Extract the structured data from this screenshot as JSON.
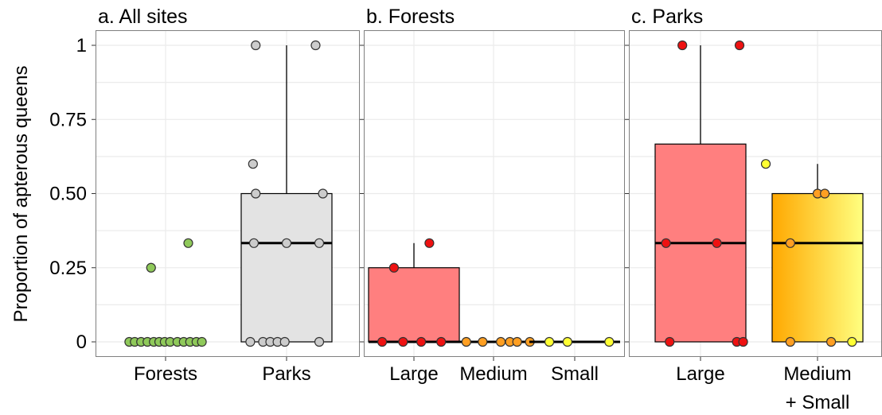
{
  "colors": {
    "forests": "#8fc95a",
    "parks": "#cccccc",
    "parks_box": "#e3e3e3",
    "large": "#ff7f7f",
    "large_point": "#ee1111",
    "medium": "#ff9f22",
    "small": "#ffff33",
    "medium_small_gradient": [
      "#ffa800",
      "#ffff80"
    ]
  },
  "chart_data": [
    {
      "type": "box",
      "title": "a. All sites",
      "ylabel": "Proportion of apterous queens",
      "ylim": [
        0,
        1
      ],
      "yticks": [
        0,
        0.25,
        0.5,
        0.75,
        1
      ],
      "ytick_labels": [
        "0",
        "0.25",
        "0.50",
        "0.75",
        "1"
      ],
      "categories": [
        {
          "label": [
            "Forests"
          ],
          "fill": "#8fc95a",
          "box": null,
          "points": [
            {
              "x": -0.4,
              "y": 0
            },
            {
              "x": -0.34,
              "y": 0
            },
            {
              "x": -0.27,
              "y": 0
            },
            {
              "x": -0.2,
              "y": 0
            },
            {
              "x": -0.13,
              "y": 0
            },
            {
              "x": -0.07,
              "y": 0
            },
            {
              "x": -0.01,
              "y": 0
            },
            {
              "x": 0.05,
              "y": 0
            },
            {
              "x": 0.13,
              "y": 0
            },
            {
              "x": 0.2,
              "y": 0
            },
            {
              "x": 0.27,
              "y": 0
            },
            {
              "x": 0.34,
              "y": 0
            },
            {
              "x": 0.4,
              "y": 0
            },
            {
              "x": -0.16,
              "y": 0.25
            },
            {
              "x": 0.25,
              "y": 0.333
            }
          ]
        },
        {
          "label": [
            "Parks"
          ],
          "fill": "#cccccc",
          "box": {
            "q1": 0,
            "median": 0.333,
            "q3": 0.5,
            "whisker_low": 0,
            "whisker_high": 1,
            "fill": "#e3e3e3"
          },
          "points": [
            {
              "x": -0.4,
              "y": 0
            },
            {
              "x": -0.26,
              "y": 0
            },
            {
              "x": -0.18,
              "y": 0
            },
            {
              "x": -0.1,
              "y": 0
            },
            {
              "x": -0.02,
              "y": 0
            },
            {
              "x": 0.36,
              "y": 0
            },
            {
              "x": -0.36,
              "y": 0.333
            },
            {
              "x": 0.0,
              "y": 0.333
            },
            {
              "x": 0.36,
              "y": 0.333
            },
            {
              "x": -0.34,
              "y": 0.5
            },
            {
              "x": 0.4,
              "y": 0.5
            },
            {
              "x": -0.37,
              "y": 0.6
            },
            {
              "x": -0.34,
              "y": 1
            },
            {
              "x": 0.32,
              "y": 1
            }
          ]
        }
      ]
    },
    {
      "type": "box",
      "title": "b. Forests",
      "ylim": [
        0,
        1
      ],
      "yticks": [
        0,
        0.25,
        0.5,
        0.75,
        1
      ],
      "categories": [
        {
          "label": [
            "Large"
          ],
          "fill": "#ee1111",
          "box": {
            "q1": 0,
            "median": 0,
            "q3": 0.25,
            "whisker_low": 0,
            "whisker_high": 0.333,
            "fill": "#ff7f7f"
          },
          "points": [
            {
              "x": -0.35,
              "y": 0
            },
            {
              "x": -0.12,
              "y": 0
            },
            {
              "x": 0.08,
              "y": 0
            },
            {
              "x": 0.3,
              "y": 0
            },
            {
              "x": -0.22,
              "y": 0.25
            },
            {
              "x": 0.17,
              "y": 0.333
            }
          ]
        },
        {
          "label": [
            "Medium"
          ],
          "fill": "#ff9f22",
          "box": {
            "q1": 0,
            "median": 0,
            "q3": 0,
            "whisker_low": 0,
            "whisker_high": 0,
            "fill": "#ff9f22"
          },
          "points": [
            {
              "x": -0.3,
              "y": 0
            },
            {
              "x": -0.12,
              "y": 0
            },
            {
              "x": 0.08,
              "y": 0
            },
            {
              "x": 0.18,
              "y": 0
            },
            {
              "x": 0.26,
              "y": 0
            },
            {
              "x": 0.4,
              "y": 0
            }
          ]
        },
        {
          "label": [
            "Small"
          ],
          "fill": "#ffff33",
          "box": {
            "q1": 0,
            "median": 0,
            "q3": 0,
            "whisker_low": 0,
            "whisker_high": 0,
            "fill": "#ffff33"
          },
          "points": [
            {
              "x": -0.28,
              "y": 0
            },
            {
              "x": -0.08,
              "y": 0
            },
            {
              "x": 0.38,
              "y": 0
            }
          ]
        }
      ]
    },
    {
      "type": "box",
      "title": "c. Parks",
      "ylim": [
        0,
        1
      ],
      "yticks": [
        0,
        0.25,
        0.5,
        0.75,
        1
      ],
      "categories": [
        {
          "label": [
            "Large"
          ],
          "fill": "#ee1111",
          "box": {
            "q1": 0,
            "median": 0.333,
            "q3": 0.667,
            "whisker_low": 0,
            "whisker_high": 1,
            "fill": "#ff7f7f"
          },
          "points": [
            {
              "x": -0.34,
              "y": 0
            },
            {
              "x": 0.4,
              "y": 0
            },
            {
              "x": 0.47,
              "y": 0
            },
            {
              "x": -0.38,
              "y": 0.333
            },
            {
              "x": 0.18,
              "y": 0.333
            },
            {
              "x": -0.2,
              "y": 1
            },
            {
              "x": 0.43,
              "y": 1
            }
          ]
        },
        {
          "label": [
            "Medium",
            "+ Small"
          ],
          "fill": "#ff9f22",
          "box": {
            "q1": 0,
            "median": 0.333,
            "q3": 0.5,
            "whisker_low": 0,
            "whisker_high": 0.6,
            "fill": "gradient"
          },
          "points": [
            {
              "x": -0.3,
              "y": 0,
              "fill": "#ff9f22"
            },
            {
              "x": 0.15,
              "y": 0,
              "fill": "#ff9f22"
            },
            {
              "x": 0.38,
              "y": 0,
              "fill": "#ffff33"
            },
            {
              "x": -0.3,
              "y": 0.333,
              "fill": "#ff9f22"
            },
            {
              "x": 0.0,
              "y": 0.5,
              "fill": "#ff9f22"
            },
            {
              "x": 0.08,
              "y": 0.5,
              "fill": "#ff9f22"
            },
            {
              "x": -0.57,
              "y": 0.6,
              "fill": "#ffff33"
            }
          ]
        }
      ]
    }
  ]
}
